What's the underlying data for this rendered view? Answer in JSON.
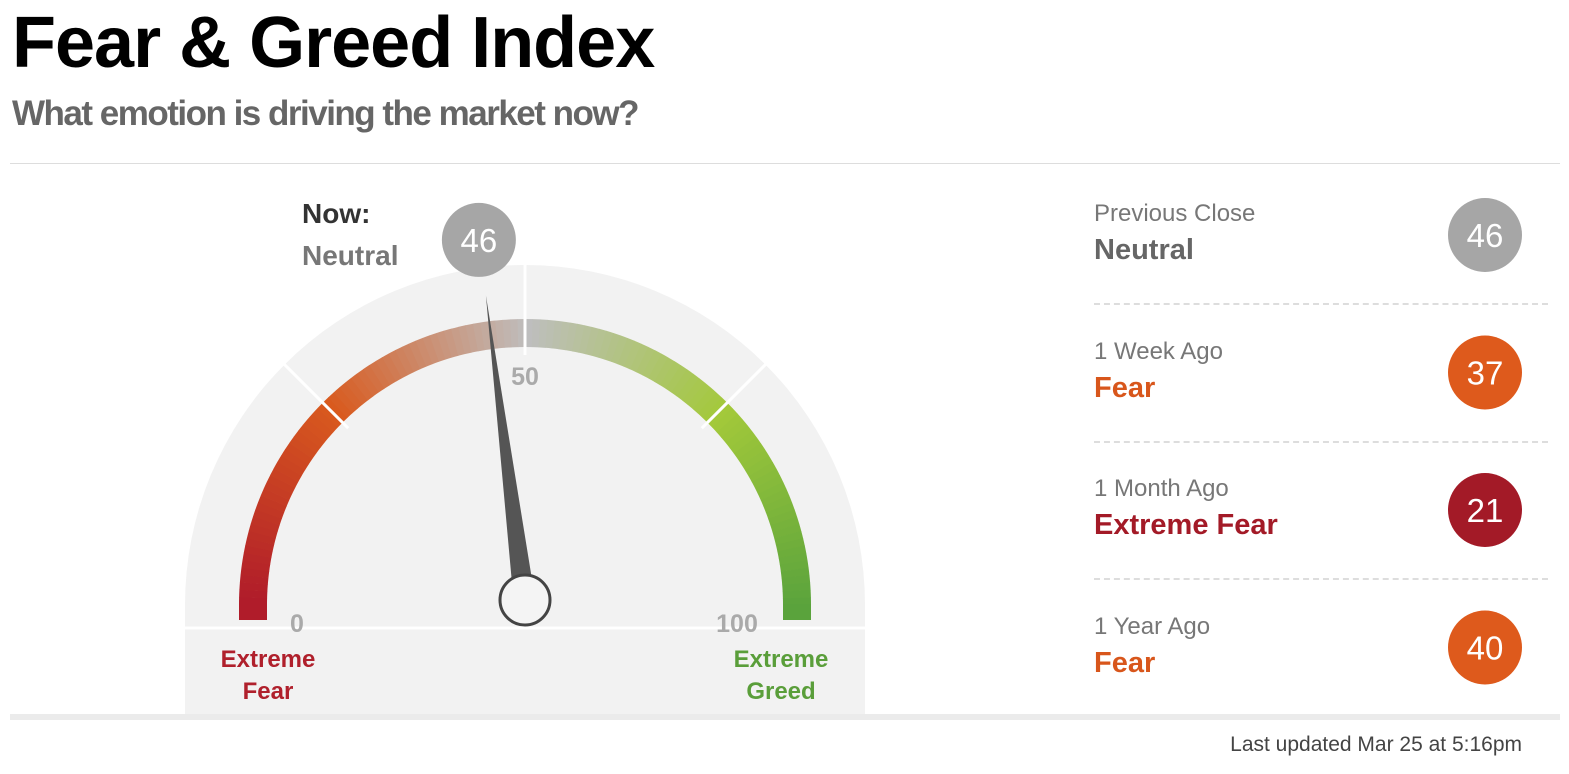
{
  "header": {
    "title": "Fear & Greed Index",
    "subtitle": "What emotion is driving the market now?"
  },
  "gauge": {
    "now_label": "Now:",
    "rating": "Neutral",
    "rating_color": "#777777",
    "value": 46,
    "bubble_color": "#a6a6a6",
    "min": 0,
    "max": 100,
    "scale": [
      0,
      50,
      100
    ],
    "left_label": "Extreme Fear",
    "left_color": "#b0202c",
    "right_label": "Extreme Greed",
    "right_color": "#5a9e3a"
  },
  "history": [
    {
      "label": "Previous Close",
      "rating": "Neutral",
      "value": 46,
      "color": "#a6a6a6",
      "rating_color": "#666666"
    },
    {
      "label": "1 Week Ago",
      "rating": "Fear",
      "value": 37,
      "color": "#de5a1c",
      "rating_color": "#d8561b"
    },
    {
      "label": "1 Month Ago",
      "rating": "Extreme Fear",
      "value": 21,
      "color": "#a31a27",
      "rating_color": "#a31a27"
    },
    {
      "label": "1 Year Ago",
      "rating": "Fear",
      "value": 40,
      "color": "#de5a1c",
      "rating_color": "#d8561b"
    }
  ],
  "footer": "Last updated Mar 25 at 5:16pm"
}
